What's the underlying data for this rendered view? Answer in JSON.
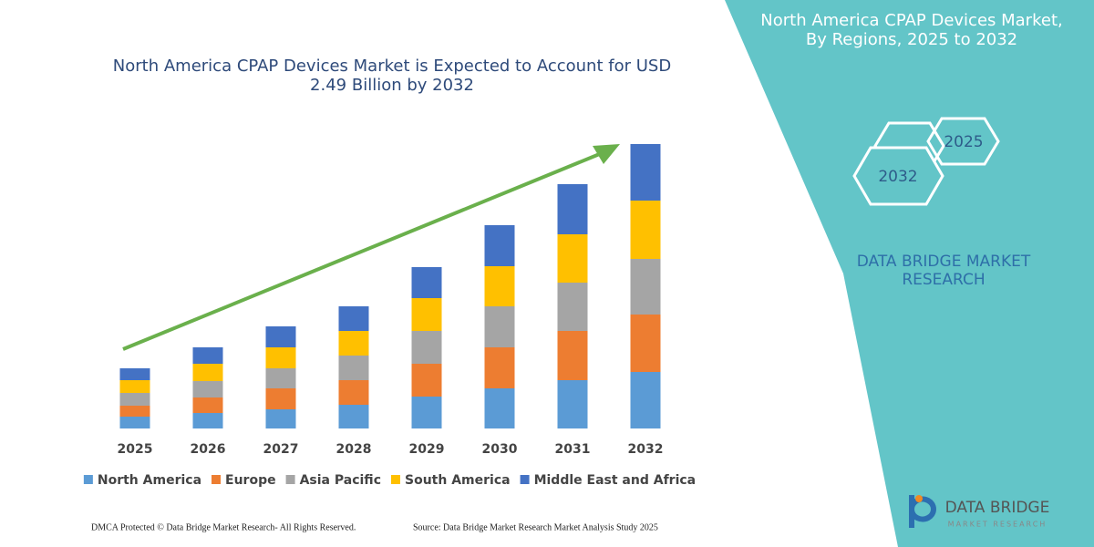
{
  "header": {
    "title": "North America CPAP Devices Market, By Regions, 2025 to 2032",
    "years": [
      "2025",
      "2032"
    ],
    "brand": "DATA BRIDGE MARKET RESEARCH"
  },
  "footer": {
    "left": "DMCA Protected © Data Bridge Market Research-  All Rights Reserved.",
    "right": "Source: Data Bridge Market Research  Market Analysis Study 2025"
  },
  "logo": {
    "name": "DATA BRIDGE",
    "tagline": "MARKET RESEARCH"
  },
  "chart_data": {
    "type": "bar",
    "stacked": true,
    "title": "North America CPAP Devices Market is Expected to Account for USD 2.49 Billion by 2032",
    "categories": [
      "2025",
      "2026",
      "2027",
      "2028",
      "2029",
      "2030",
      "2031",
      "2032"
    ],
    "series": [
      {
        "name": "North America",
        "color": "#5b9bd5",
        "values": [
          13,
          17,
          21,
          26,
          35,
          44,
          53,
          62
        ]
      },
      {
        "name": "Europe",
        "color": "#ed7d31",
        "values": [
          12,
          17,
          23,
          27,
          36,
          45,
          54,
          63
        ]
      },
      {
        "name": "Asia Pacific",
        "color": "#a5a5a5",
        "values": [
          14,
          18,
          22,
          27,
          36,
          45,
          53,
          61
        ]
      },
      {
        "name": "South America",
        "color": "#ffc000",
        "values": [
          14,
          19,
          23,
          27,
          36,
          44,
          53,
          64
        ]
      },
      {
        "name": "Middle East and Africa",
        "color": "#4472c4",
        "values": [
          13,
          18,
          23,
          27,
          34,
          45,
          55,
          62
        ]
      }
    ],
    "ylim": [
      0,
      320
    ],
    "legend": "bottom"
  }
}
